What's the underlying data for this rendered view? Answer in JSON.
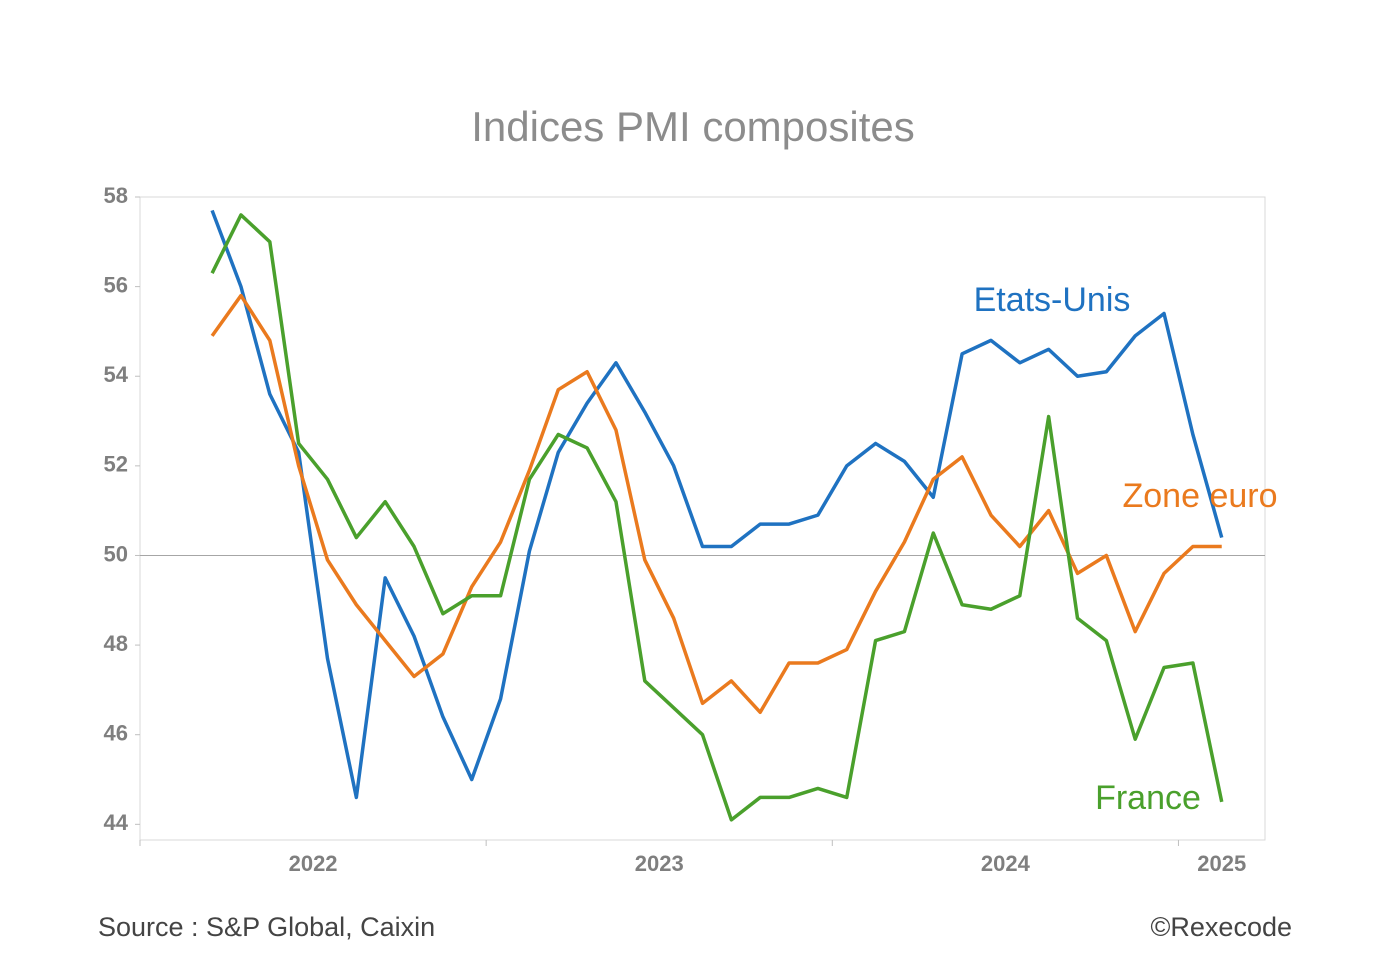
{
  "chart_data": {
    "type": "line",
    "title": "Indices PMI composites",
    "categories": [
      null,
      null,
      null,
      null,
      null,
      null,
      null,
      null,
      null,
      null,
      null,
      null,
      null,
      null,
      null,
      null,
      null,
      null,
      null,
      null,
      null,
      null,
      null,
      null,
      null,
      null,
      null,
      null,
      null,
      null,
      null,
      null,
      null,
      null,
      null,
      null
    ],
    "series": [
      {
        "name": "Etats-Unis",
        "color": "#1f72c1",
        "values": [
          57.7,
          56.0,
          53.6,
          52.3,
          47.7,
          44.6,
          49.5,
          48.2,
          46.4,
          45.0,
          46.8,
          50.1,
          52.3,
          53.4,
          54.3,
          53.2,
          52.0,
          50.2,
          50.2,
          50.7,
          50.7,
          50.9,
          52.0,
          52.5,
          52.1,
          51.3,
          54.5,
          54.8,
          54.3,
          54.6,
          54.0,
          54.1,
          54.9,
          55.4,
          52.7,
          50.4
        ]
      },
      {
        "name": "Zone euro",
        "color": "#ea7a1e",
        "values": [
          54.9,
          55.8,
          54.8,
          52.0,
          49.9,
          48.9,
          48.1,
          47.3,
          47.8,
          49.3,
          50.3,
          51.9,
          53.7,
          54.1,
          52.8,
          49.9,
          48.6,
          46.7,
          47.2,
          46.5,
          47.6,
          47.6,
          47.9,
          49.2,
          50.3,
          51.7,
          52.2,
          50.9,
          50.2,
          51.0,
          49.6,
          50.0,
          48.3,
          49.6,
          50.2,
          50.2
        ]
      },
      {
        "name": "France",
        "color": "#4aa02c",
        "values": [
          56.3,
          57.6,
          57.0,
          52.5,
          51.7,
          50.4,
          51.2,
          50.2,
          48.7,
          49.1,
          49.1,
          51.7,
          52.7,
          52.4,
          51.2,
          47.2,
          46.6,
          46.0,
          44.1,
          44.6,
          44.6,
          44.8,
          44.6,
          48.1,
          48.3,
          50.5,
          48.9,
          48.8,
          49.1,
          53.1,
          48.6,
          48.1,
          45.9,
          47.5,
          47.6,
          44.5
        ]
      }
    ],
    "xlim": [
      -2.5,
      36.5
    ],
    "xticks": [
      -2.5,
      9.5,
      21.5,
      33.5
    ],
    "xtick_labels": [
      {
        "value": 3.5,
        "label": "2022"
      },
      {
        "value": 15.5,
        "label": "2023"
      },
      {
        "value": 27.5,
        "label": "2024"
      },
      {
        "value": 35,
        "label": "2025"
      }
    ],
    "ylim": [
      43.65,
      58
    ],
    "yticks": [
      44,
      46,
      48,
      50,
      52,
      54,
      56,
      58
    ],
    "reference_line": 50,
    "source": "Source : S&P Global, Caixin",
    "credit": "©Rexecode"
  }
}
